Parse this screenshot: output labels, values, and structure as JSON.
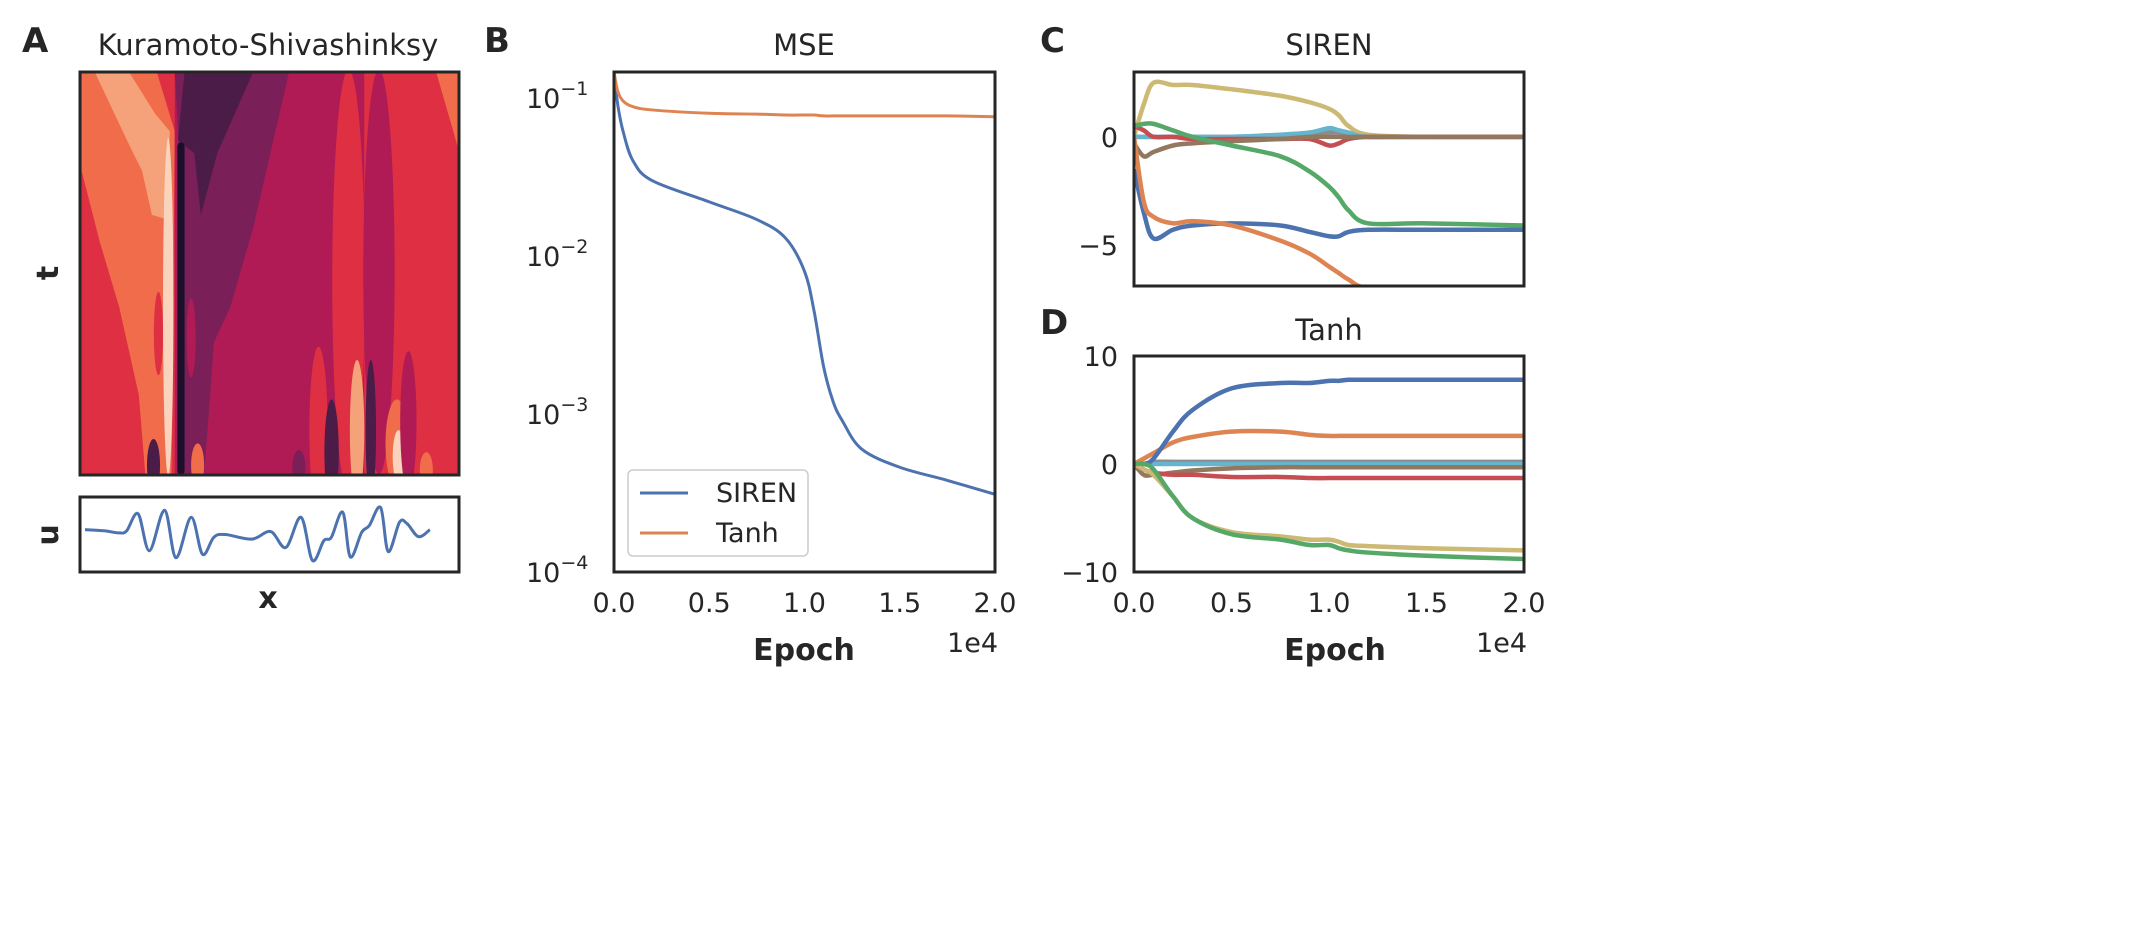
{
  "panels": {
    "a": "A",
    "b": "B",
    "c": "C",
    "d": "D"
  },
  "chart_data": [
    {
      "type": "heatmap",
      "title": "Kuramoto-Shivashinksy",
      "xlabel": "x",
      "ylabel": "t",
      "colormap": [
        "#1c0f2a",
        "#4a1c47",
        "#7a1f58",
        "#b01b55",
        "#de2f43",
        "#f06c4b",
        "#f5a27a",
        "#f9d3bc"
      ],
      "profile": {
        "ylabel": "u",
        "xlabel": "x",
        "color": "#4c72b0",
        "x": [
          0,
          5,
          9,
          11,
          14,
          17,
          21,
          24,
          28,
          31,
          34,
          37,
          44,
          49,
          53,
          57,
          60,
          63,
          65,
          68,
          70,
          73,
          75,
          78,
          80,
          83,
          85,
          88,
          91
        ],
        "u": [
          0.16,
          0.12,
          0.04,
          0.12,
          0.75,
          -0.62,
          0.88,
          -0.88,
          0.62,
          -0.75,
          -0.12,
          -0.02,
          -0.19,
          0.09,
          -0.5,
          0.62,
          -0.98,
          -0.25,
          -0.12,
          0.81,
          -0.85,
          0.06,
          0.31,
          0.98,
          -0.65,
          0.44,
          0.38,
          -0.1,
          0.16
        ]
      }
    },
    {
      "type": "line",
      "title": "MSE",
      "xlabel": "Epoch",
      "x_offset_label": "1e4",
      "yscale": "log",
      "ylim": [
        0.0001,
        0.146
      ],
      "xlim": [
        0,
        2.0
      ],
      "xticks": [
        "0.0",
        "0.5",
        "1.0",
        "1.5",
        "2.0"
      ],
      "yticks": [
        {
          "value": 0.1,
          "base": "10",
          "exp": "−1"
        },
        {
          "value": 0.01,
          "base": "10",
          "exp": "−2"
        },
        {
          "value": 0.001,
          "base": "10",
          "exp": "−3"
        },
        {
          "value": 0.0001,
          "base": "10",
          "exp": "−4"
        }
      ],
      "legend": "bottom-left",
      "x": [
        0,
        0.02,
        0.05,
        0.1,
        0.2,
        0.5,
        0.75,
        0.9,
        1.0,
        1.05,
        1.1,
        1.15,
        1.2,
        1.3,
        1.5,
        1.75,
        2.0
      ],
      "series": [
        {
          "name": "SIREN",
          "color": "#4c72b0",
          "values": [
            0.146,
            0.09,
            0.06,
            0.04,
            0.03,
            0.022,
            0.017,
            0.013,
            0.008,
            0.0045,
            0.002,
            0.0012,
            0.0009,
            0.0006,
            0.00046,
            0.00038,
            0.00031
          ]
        },
        {
          "name": "Tanh",
          "color": "#dd8452",
          "values": [
            0.146,
            0.11,
            0.095,
            0.088,
            0.084,
            0.08,
            0.079,
            0.078,
            0.078,
            0.078,
            0.077,
            0.077,
            0.077,
            0.077,
            0.077,
            0.077,
            0.076
          ]
        }
      ]
    },
    {
      "type": "line",
      "title": "SIREN",
      "ylim": [
        -6.9,
        3.0
      ],
      "xlim": [
        0,
        2.0
      ],
      "yticks": [
        {
          "value": 0,
          "label": "0"
        },
        {
          "value": -5,
          "label": "−5"
        }
      ],
      "x": [
        0,
        0.05,
        0.1,
        0.2,
        0.3,
        0.5,
        0.75,
        0.9,
        1.0,
        1.05,
        1.1,
        1.2,
        1.5,
        2.0
      ],
      "series": [
        {
          "color": "#ccb974",
          "values": [
            0,
            1.5,
            2.5,
            2.4,
            2.4,
            2.2,
            1.9,
            1.6,
            1.3,
            1.0,
            0.5,
            0.1,
            0,
            0
          ]
        },
        {
          "color": "#8c8c8c",
          "values": [
            0,
            0,
            0,
            0,
            0,
            0,
            0,
            0.1,
            0.2,
            0.2,
            0.1,
            0,
            0,
            0
          ]
        },
        {
          "color": "#64b5cd",
          "values": [
            0,
            0,
            0,
            0,
            0,
            0,
            0.1,
            0.2,
            0.4,
            0.3,
            0.2,
            0,
            0,
            0
          ]
        },
        {
          "color": "#c44e52",
          "values": [
            0.5,
            0.3,
            0,
            0,
            -0.1,
            -0.1,
            -0.1,
            -0.1,
            -0.4,
            -0.3,
            -0.1,
            0,
            0,
            0
          ]
        },
        {
          "color": "#937860",
          "values": [
            -0.3,
            -0.9,
            -0.7,
            -0.4,
            -0.3,
            -0.2,
            -0.1,
            0,
            0,
            0,
            0,
            0,
            0,
            0
          ]
        },
        {
          "color": "#4c72b0",
          "values": [
            -1.5,
            -3.5,
            -4.7,
            -4.3,
            -4.1,
            -4.0,
            -4.1,
            -4.4,
            -4.6,
            -4.6,
            -4.4,
            -4.3,
            -4.3,
            -4.3
          ]
        },
        {
          "color": "#dd8452",
          "values": [
            0,
            -3,
            -3.7,
            -4.0,
            -3.9,
            -4.1,
            -4.8,
            -5.4,
            -6.0,
            -6.3,
            -6.6,
            -7.0,
            -7.0,
            -7.0
          ]
        },
        {
          "color": "#55a868",
          "values": [
            0.5,
            0.6,
            0.6,
            0.3,
            0,
            -0.4,
            -0.9,
            -1.6,
            -2.3,
            -2.8,
            -3.4,
            -4.0,
            -4.0,
            -4.1
          ]
        }
      ]
    },
    {
      "type": "line",
      "title": "Tanh",
      "xlabel": "Epoch",
      "x_offset_label": "1e4",
      "ylim": [
        -10,
        10
      ],
      "xlim": [
        0,
        2.0
      ],
      "xticks": [
        "0.0",
        "0.5",
        "1.0",
        "1.5",
        "2.0"
      ],
      "yticks": [
        {
          "value": 10,
          "label": "10"
        },
        {
          "value": 0,
          "label": "0"
        },
        {
          "value": -10,
          "label": "−10"
        }
      ],
      "x": [
        0,
        0.05,
        0.1,
        0.2,
        0.3,
        0.5,
        0.75,
        0.9,
        1.0,
        1.05,
        1.1,
        1.2,
        1.5,
        2.0
      ],
      "series": [
        {
          "color": "#8c8c8c",
          "values": [
            0,
            0,
            0.2,
            0.2,
            0.2,
            0.2,
            0.2,
            0.2,
            0.2,
            0.2,
            0.2,
            0.2,
            0.2,
            0.2
          ]
        },
        {
          "color": "#64b5cd",
          "values": [
            0,
            0,
            0,
            0,
            0,
            0,
            0,
            0,
            0,
            0,
            0,
            0,
            0,
            0
          ]
        },
        {
          "color": "#937860",
          "values": [
            0,
            -1,
            -1,
            -0.8,
            -0.6,
            -0.4,
            -0.3,
            -0.3,
            -0.3,
            -0.3,
            -0.3,
            -0.3,
            -0.3,
            -0.3
          ]
        },
        {
          "color": "#c44e52",
          "values": [
            0,
            -0.5,
            -0.8,
            -1,
            -1,
            -1.2,
            -1.2,
            -1.3,
            -1.3,
            -1.3,
            -1.3,
            -1.3,
            -1.3,
            -1.3
          ]
        },
        {
          "color": "#dd8452",
          "values": [
            0,
            0.5,
            1,
            2,
            2.5,
            3,
            3,
            2.7,
            2.6,
            2.6,
            2.6,
            2.6,
            2.6,
            2.6
          ]
        },
        {
          "color": "#4c72b0",
          "values": [
            0,
            0,
            0.5,
            3,
            5,
            7,
            7.5,
            7.5,
            7.7,
            7.7,
            7.8,
            7.8,
            7.8,
            7.8
          ]
        },
        {
          "color": "#ccb974",
          "values": [
            0,
            -0.5,
            -1,
            -3,
            -5,
            -6.3,
            -6.7,
            -7,
            -7,
            -7.2,
            -7.5,
            -7.6,
            -7.8,
            -8
          ]
        },
        {
          "color": "#55a868",
          "values": [
            0,
            0,
            -0.5,
            -3,
            -5,
            -6.5,
            -7,
            -7.5,
            -7.5,
            -7.8,
            -8,
            -8.2,
            -8.5,
            -8.8
          ]
        }
      ]
    }
  ]
}
